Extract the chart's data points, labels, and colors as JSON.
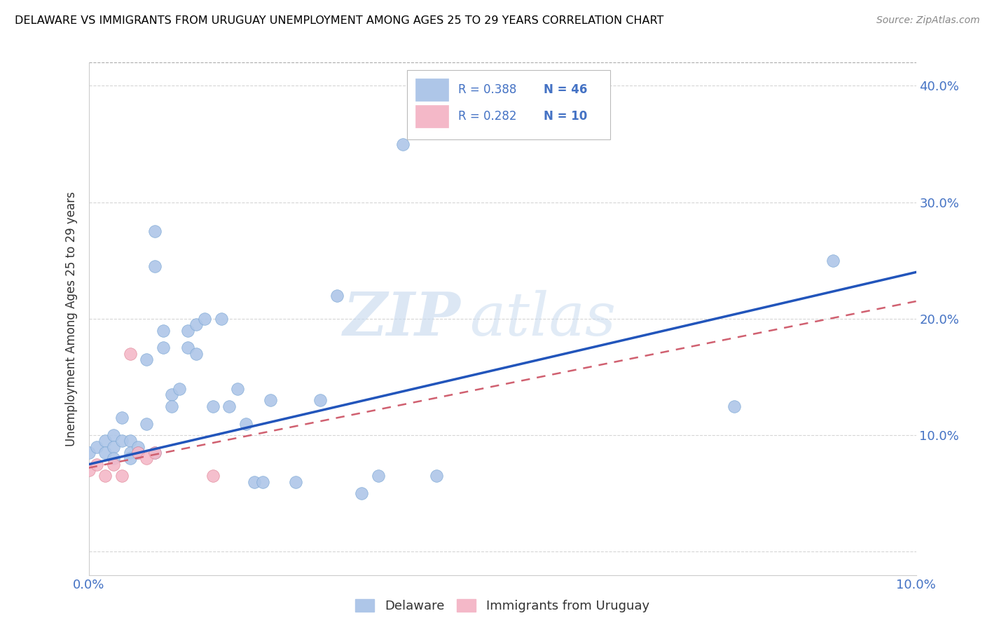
{
  "title": "DELAWARE VS IMMIGRANTS FROM URUGUAY UNEMPLOYMENT AMONG AGES 25 TO 29 YEARS CORRELATION CHART",
  "source": "Source: ZipAtlas.com",
  "ylabel": "Unemployment Among Ages 25 to 29 years",
  "xlim": [
    0.0,
    0.1
  ],
  "ylim": [
    -0.02,
    0.42
  ],
  "xticks": [
    0.0,
    0.02,
    0.04,
    0.06,
    0.08,
    0.1
  ],
  "yticks": [
    0.0,
    0.1,
    0.2,
    0.3,
    0.4
  ],
  "delaware_color": "#aec6e8",
  "delaware_edge": "#7ba7d4",
  "uruguay_color": "#f4b8c8",
  "uruguay_edge": "#e08898",
  "trend_blue": "#2255bb",
  "trend_pink": "#d06070",
  "watermark_zip": "ZIP",
  "watermark_atlas": "atlas",
  "legend_R1": "R = 0.388",
  "legend_N1": "N = 46",
  "legend_R2": "R = 0.282",
  "legend_N2": "N = 10",
  "delaware_label": "Delaware",
  "uruguay_label": "Immigrants from Uruguay",
  "delaware_points_x": [
    0.0,
    0.001,
    0.002,
    0.002,
    0.003,
    0.003,
    0.003,
    0.004,
    0.004,
    0.005,
    0.005,
    0.005,
    0.006,
    0.006,
    0.007,
    0.007,
    0.008,
    0.008,
    0.008,
    0.009,
    0.009,
    0.01,
    0.01,
    0.011,
    0.012,
    0.012,
    0.013,
    0.013,
    0.014,
    0.015,
    0.016,
    0.017,
    0.018,
    0.019,
    0.02,
    0.021,
    0.022,
    0.025,
    0.028,
    0.03,
    0.033,
    0.035,
    0.038,
    0.042,
    0.078,
    0.09
  ],
  "delaware_points_y": [
    0.085,
    0.09,
    0.095,
    0.085,
    0.1,
    0.09,
    0.08,
    0.115,
    0.095,
    0.095,
    0.085,
    0.08,
    0.09,
    0.085,
    0.165,
    0.11,
    0.275,
    0.245,
    0.085,
    0.19,
    0.175,
    0.135,
    0.125,
    0.14,
    0.19,
    0.175,
    0.195,
    0.17,
    0.2,
    0.125,
    0.2,
    0.125,
    0.14,
    0.11,
    0.06,
    0.06,
    0.13,
    0.06,
    0.13,
    0.22,
    0.05,
    0.065,
    0.35,
    0.065,
    0.125,
    0.25
  ],
  "uruguay_points_x": [
    0.0,
    0.001,
    0.002,
    0.003,
    0.004,
    0.005,
    0.006,
    0.007,
    0.008,
    0.015
  ],
  "uruguay_points_y": [
    0.07,
    0.075,
    0.065,
    0.075,
    0.065,
    0.17,
    0.085,
    0.08,
    0.085,
    0.065
  ],
  "blue_trend_x": [
    0.0,
    0.1
  ],
  "blue_trend_y": [
    0.075,
    0.24
  ],
  "pink_trend_x": [
    0.0,
    0.1
  ],
  "pink_trend_y": [
    0.072,
    0.215
  ]
}
